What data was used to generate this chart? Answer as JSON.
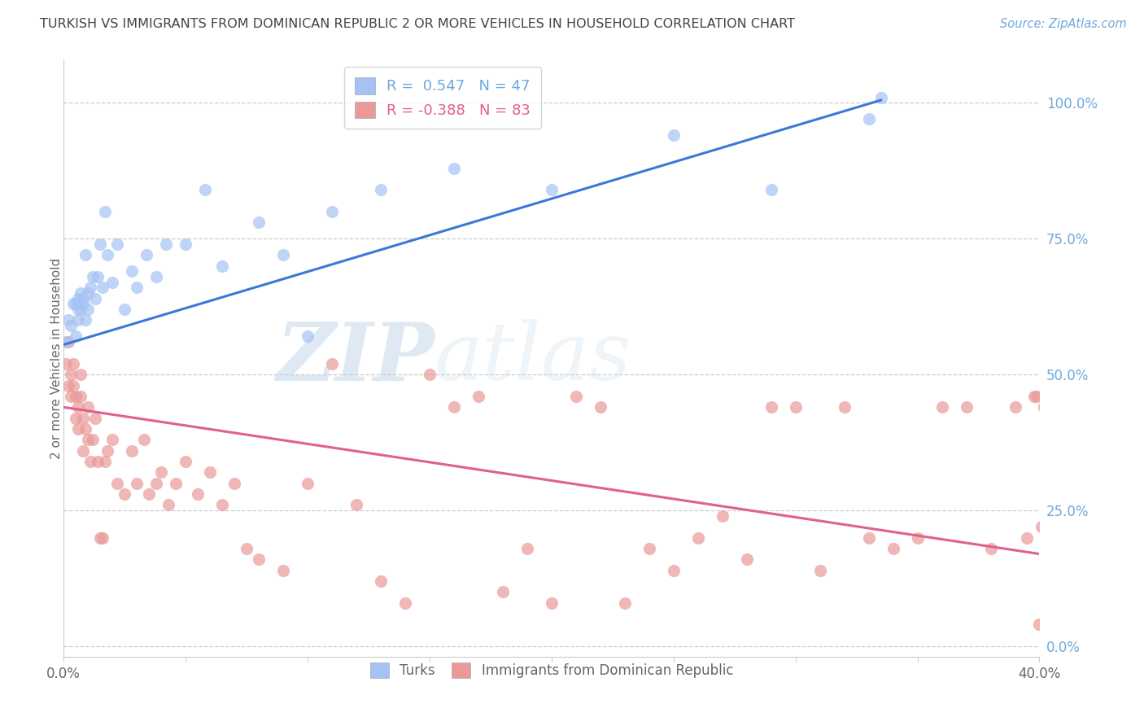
{
  "title": "TURKISH VS IMMIGRANTS FROM DOMINICAN REPUBLIC 2 OR MORE VEHICLES IN HOUSEHOLD CORRELATION CHART",
  "source": "Source: ZipAtlas.com",
  "ylabel": "2 or more Vehicles in Household",
  "xlim": [
    0.0,
    0.4
  ],
  "ylim": [
    -0.02,
    1.08
  ],
  "xtick_positions": [
    0.0,
    0.05,
    0.1,
    0.15,
    0.2,
    0.25,
    0.3,
    0.35,
    0.4
  ],
  "xtick_labels": [
    "0.0%",
    "",
    "",
    "",
    "",
    "",
    "",
    "",
    "40.0%"
  ],
  "ytick_positions": [
    0.0,
    0.25,
    0.5,
    0.75,
    1.0
  ],
  "ytick_labels": [
    "0.0%",
    "25.0%",
    "50.0%",
    "75.0%",
    "100.0%"
  ],
  "blue_color": "#a4c2f4",
  "pink_color": "#ea9999",
  "line_blue": "#3c78d8",
  "line_pink": "#e06090",
  "legend_blue_label": "R =  0.547   N = 47",
  "legend_pink_label": "R = -0.388   N = 83",
  "legend_turks": "Turks",
  "legend_dominican": "Immigrants from Dominican Republic",
  "watermark_zip": "ZIP",
  "watermark_atlas": "atlas",
  "blue_line_x0": 0.0,
  "blue_line_y0": 0.555,
  "blue_line_x1": 0.335,
  "blue_line_y1": 1.005,
  "pink_line_x0": 0.0,
  "pink_line_y0": 0.44,
  "pink_line_x1": 0.4,
  "pink_line_y1": 0.17,
  "blue_x": [
    0.001,
    0.002,
    0.003,
    0.004,
    0.005,
    0.005,
    0.006,
    0.006,
    0.006,
    0.007,
    0.007,
    0.008,
    0.008,
    0.009,
    0.009,
    0.01,
    0.01,
    0.011,
    0.012,
    0.013,
    0.014,
    0.015,
    0.016,
    0.017,
    0.018,
    0.02,
    0.022,
    0.025,
    0.028,
    0.03,
    0.034,
    0.038,
    0.042,
    0.05,
    0.058,
    0.065,
    0.08,
    0.09,
    0.1,
    0.11,
    0.13,
    0.16,
    0.2,
    0.25,
    0.29,
    0.33,
    0.335
  ],
  "blue_y": [
    0.56,
    0.6,
    0.59,
    0.63,
    0.57,
    0.63,
    0.6,
    0.62,
    0.64,
    0.62,
    0.65,
    0.63,
    0.64,
    0.6,
    0.72,
    0.62,
    0.65,
    0.66,
    0.68,
    0.64,
    0.68,
    0.74,
    0.66,
    0.8,
    0.72,
    0.67,
    0.74,
    0.62,
    0.69,
    0.66,
    0.72,
    0.68,
    0.74,
    0.74,
    0.84,
    0.7,
    0.78,
    0.72,
    0.57,
    0.8,
    0.84,
    0.88,
    0.84,
    0.94,
    0.84,
    0.97,
    1.01
  ],
  "pink_x": [
    0.001,
    0.002,
    0.002,
    0.003,
    0.003,
    0.004,
    0.004,
    0.005,
    0.005,
    0.006,
    0.006,
    0.007,
    0.007,
    0.008,
    0.008,
    0.009,
    0.01,
    0.01,
    0.011,
    0.012,
    0.013,
    0.014,
    0.015,
    0.016,
    0.017,
    0.018,
    0.02,
    0.022,
    0.025,
    0.028,
    0.03,
    0.033,
    0.035,
    0.038,
    0.04,
    0.043,
    0.046,
    0.05,
    0.055,
    0.06,
    0.065,
    0.07,
    0.075,
    0.08,
    0.09,
    0.1,
    0.11,
    0.12,
    0.13,
    0.14,
    0.15,
    0.16,
    0.17,
    0.18,
    0.19,
    0.2,
    0.21,
    0.22,
    0.23,
    0.24,
    0.25,
    0.26,
    0.27,
    0.28,
    0.29,
    0.3,
    0.31,
    0.32,
    0.33,
    0.34,
    0.35,
    0.36,
    0.37,
    0.38,
    0.39,
    0.395,
    0.398,
    0.399,
    0.4,
    0.401,
    0.402,
    0.403,
    0.404
  ],
  "pink_y": [
    0.52,
    0.56,
    0.48,
    0.5,
    0.46,
    0.52,
    0.48,
    0.42,
    0.46,
    0.4,
    0.44,
    0.46,
    0.5,
    0.42,
    0.36,
    0.4,
    0.44,
    0.38,
    0.34,
    0.38,
    0.42,
    0.34,
    0.2,
    0.2,
    0.34,
    0.36,
    0.38,
    0.3,
    0.28,
    0.36,
    0.3,
    0.38,
    0.28,
    0.3,
    0.32,
    0.26,
    0.3,
    0.34,
    0.28,
    0.32,
    0.26,
    0.3,
    0.18,
    0.16,
    0.14,
    0.3,
    0.52,
    0.26,
    0.12,
    0.08,
    0.5,
    0.44,
    0.46,
    0.1,
    0.18,
    0.08,
    0.46,
    0.44,
    0.08,
    0.18,
    0.14,
    0.2,
    0.24,
    0.16,
    0.44,
    0.44,
    0.14,
    0.44,
    0.2,
    0.18,
    0.2,
    0.44,
    0.44,
    0.18,
    0.44,
    0.2,
    0.46,
    0.46,
    0.04,
    0.22,
    0.44,
    0.2,
    0.44
  ],
  "background_color": "#ffffff",
  "grid_color": "#cccccc",
  "title_color": "#434343",
  "axis_label_color": "#666666",
  "right_tick_color": "#6fa8dc",
  "source_color": "#6fa8dc"
}
